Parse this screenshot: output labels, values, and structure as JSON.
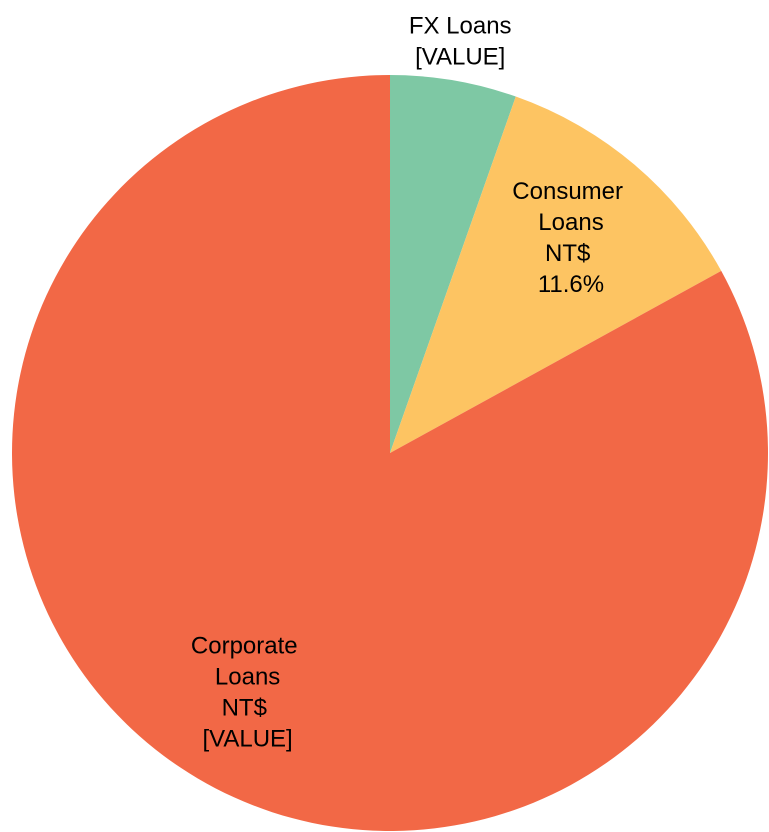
{
  "chart_data": {
    "type": "pie",
    "categories": [
      "FX Loans",
      "Consumer Loans",
      "Corporate Loans"
    ],
    "values": [
      5.4,
      11.6,
      83.0
    ],
    "value_labels": [
      "[VALUE]",
      "NT$ 11.6%",
      "NT$ [VALUE]"
    ],
    "colors": [
      "#7ec8a4",
      "#fdc462",
      "#f26846"
    ]
  }
}
